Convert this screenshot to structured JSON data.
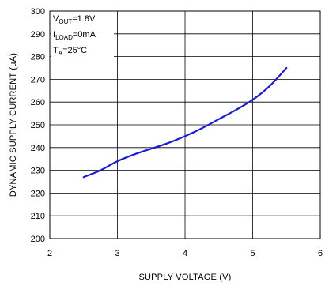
{
  "chart_data": {
    "type": "line",
    "title": "",
    "xlabel": "SUPPLY VOLTAGE (V)",
    "ylabel": "DYNAMIC SUPPLY CURRENT (µA)",
    "xlim": [
      2,
      6
    ],
    "ylim": [
      200,
      300
    ],
    "x_ticks": [
      "2",
      "3",
      "4",
      "5",
      "6"
    ],
    "y_ticks": [
      "200",
      "210",
      "220",
      "230",
      "240",
      "250",
      "260",
      "270",
      "280",
      "290",
      "300"
    ],
    "grid": true,
    "line_color": "#1a1adb",
    "legend": {
      "vout": {
        "main": "V",
        "sub": "OUT",
        "value": "=1.8V"
      },
      "iload": {
        "main": "I",
        "sub": "LOAD",
        "value": "=0mA"
      },
      "ta": {
        "main": "T",
        "sub": "A",
        "value": "=25°C"
      }
    },
    "series": [
      {
        "x": [
          2.5,
          2.75,
          3.0,
          3.25,
          3.5,
          3.75,
          4.0,
          4.25,
          4.5,
          4.75,
          5.0,
          5.25,
          5.5
        ],
        "values": [
          227,
          230,
          234,
          237,
          239.5,
          242,
          245,
          248.5,
          252.5,
          256.5,
          261,
          267,
          275
        ]
      }
    ]
  }
}
